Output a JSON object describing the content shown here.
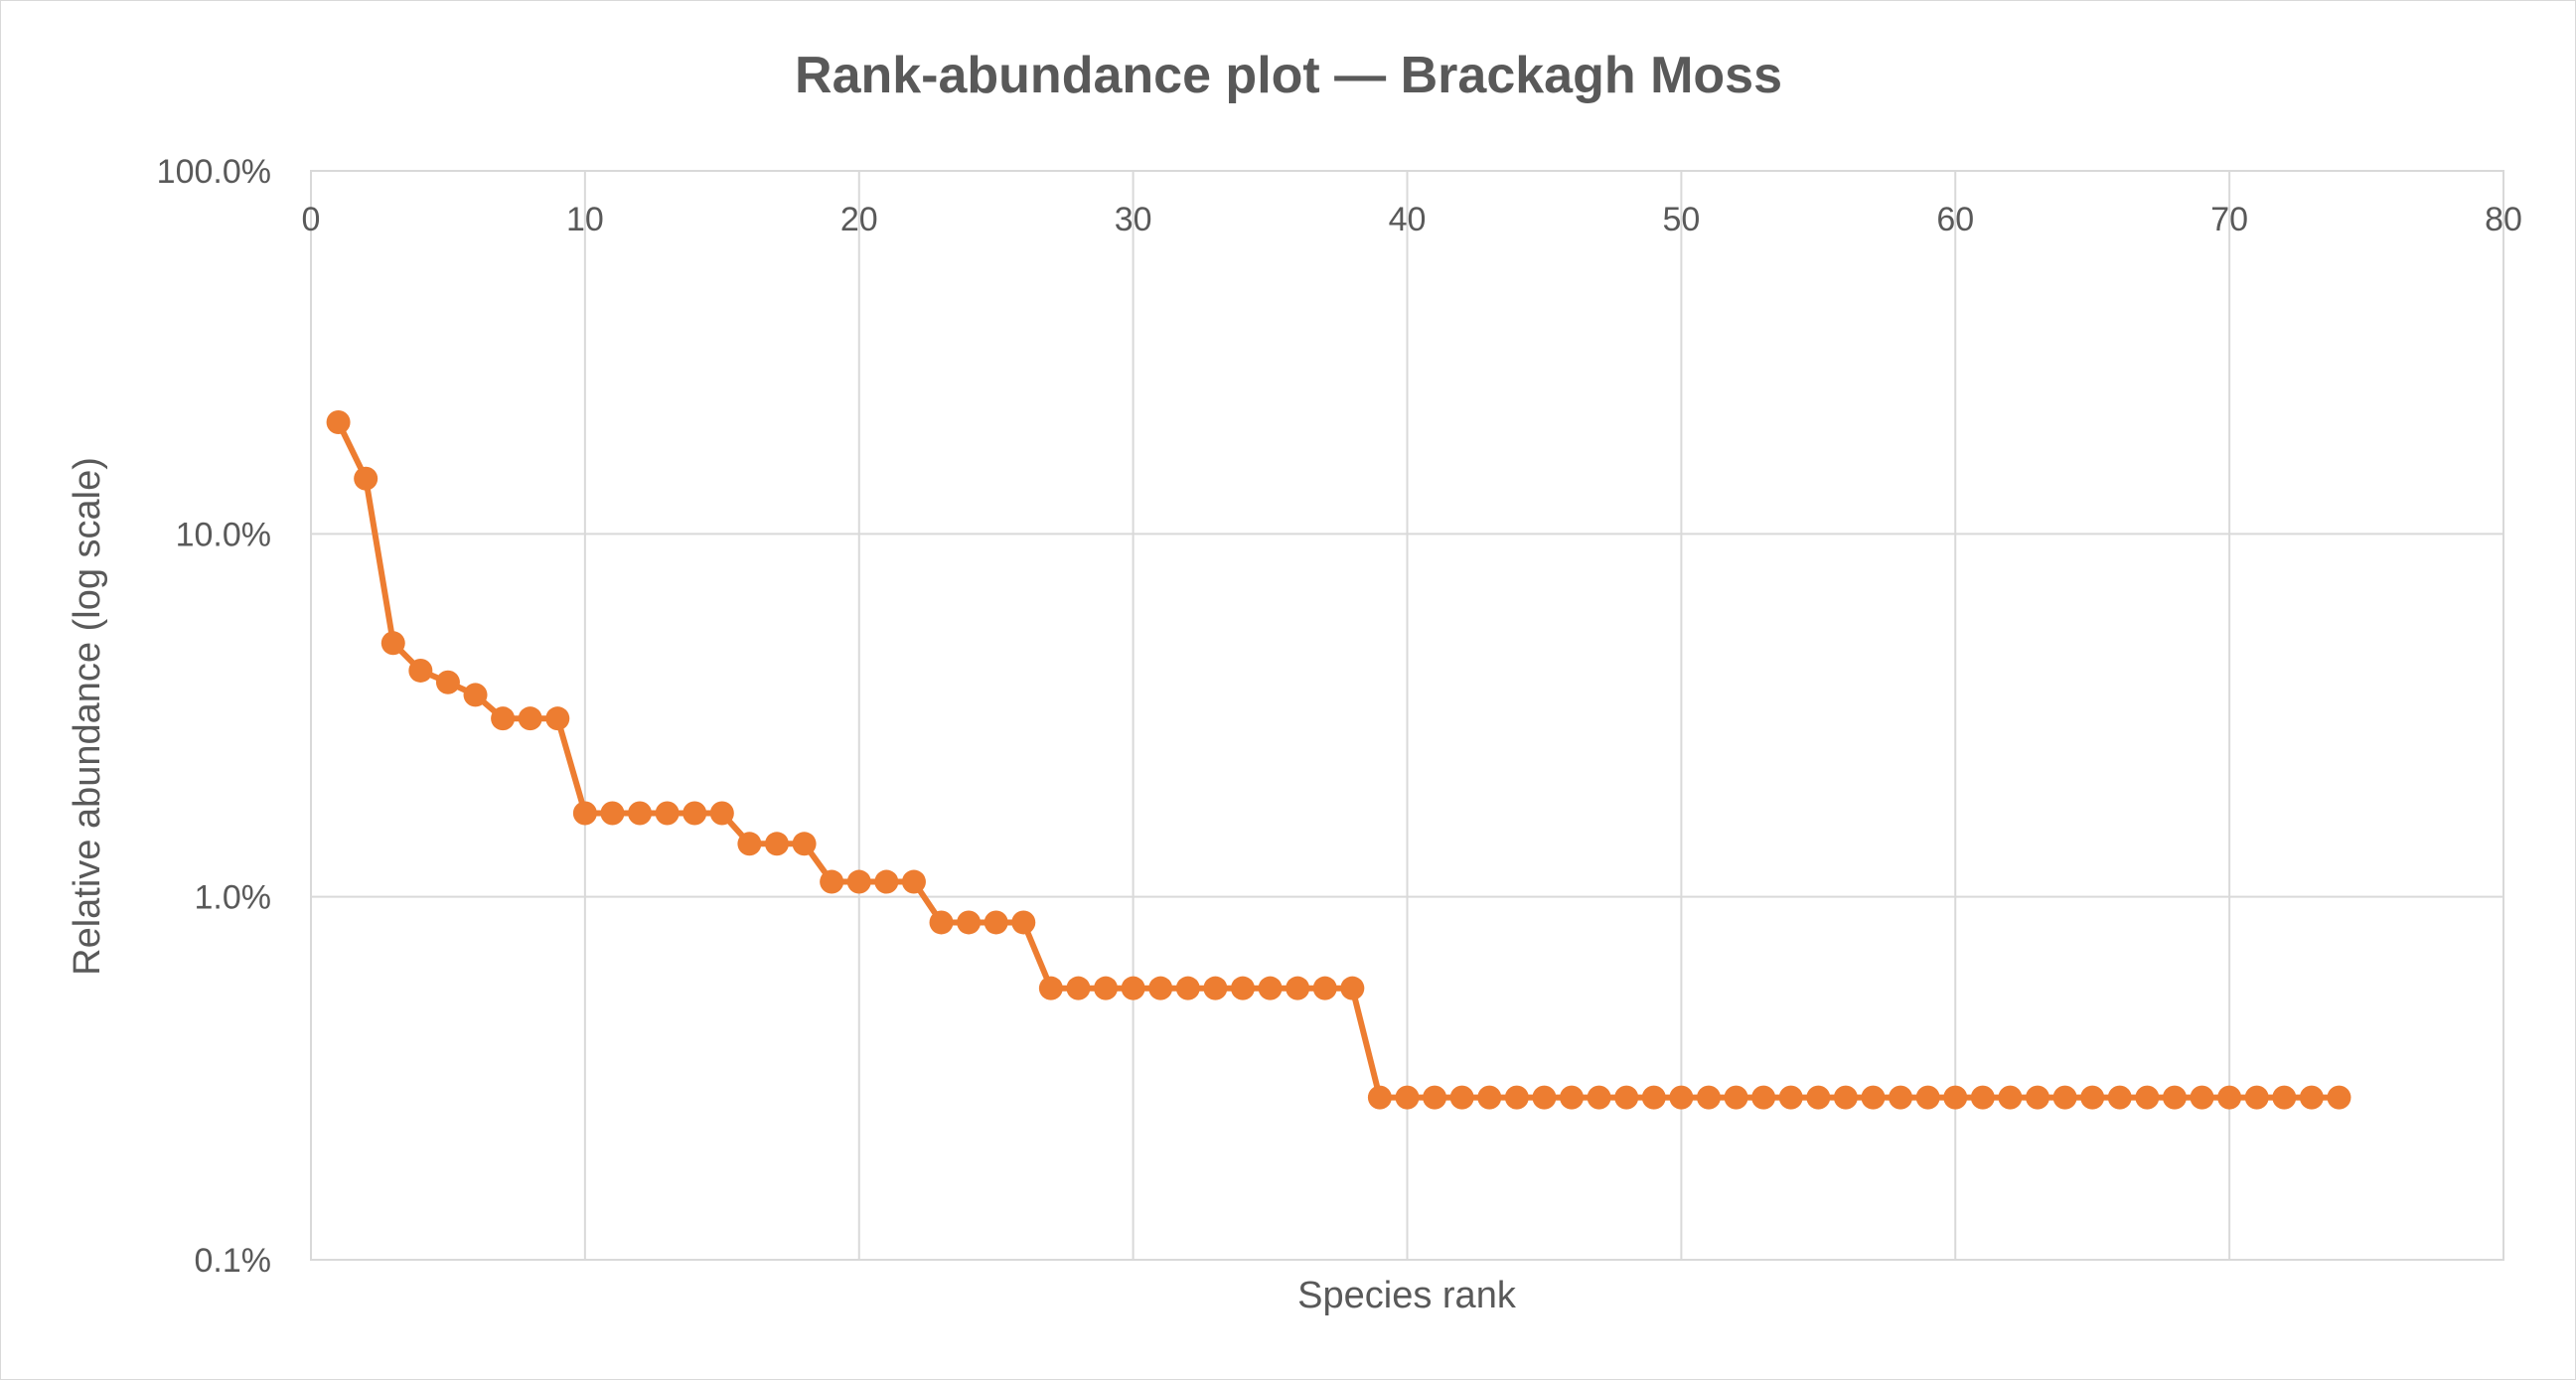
{
  "chart_data": {
    "type": "line",
    "title": "Rank-abundance plot — Brackagh Moss",
    "xlabel": "Species rank",
    "ylabel": "Relative abundance (log scale)",
    "xlim": [
      0,
      80
    ],
    "x_ticks": [
      0,
      10,
      20,
      30,
      40,
      50,
      60,
      70,
      80
    ],
    "x_tick_labels": [
      "0",
      "10",
      "20",
      "30",
      "40",
      "50",
      "60",
      "70",
      "80"
    ],
    "x_axis_position": "top",
    "ylim": [
      0.1,
      100
    ],
    "y_scale": "log",
    "y_unit": "percent",
    "y_ticks": [
      0.1,
      1,
      10,
      100
    ],
    "y_tick_labels": [
      "0.1%",
      "1.0%",
      "10.0%",
      "100.0%"
    ],
    "grid": true,
    "legend": "none",
    "series": [
      {
        "color": "#ED7D31",
        "marker": "circle",
        "x": [
          1,
          2,
          3,
          4,
          5,
          6,
          7,
          8,
          9,
          10,
          11,
          12,
          13,
          14,
          15,
          16,
          17,
          18,
          19,
          20,
          21,
          22,
          23,
          24,
          25,
          26,
          27,
          28,
          29,
          30,
          31,
          32,
          33,
          34,
          35,
          36,
          37,
          38,
          39,
          40,
          41,
          42,
          43,
          44,
          45,
          46,
          47,
          48,
          49,
          50,
          51,
          52,
          53,
          54,
          55,
          56,
          57,
          58,
          59,
          60,
          61,
          62,
          63,
          64,
          65,
          66,
          67,
          68,
          69,
          70,
          71,
          72,
          73,
          74
        ],
        "y": [
          20.3,
          14.2,
          5.0,
          4.2,
          3.9,
          3.6,
          3.1,
          3.1,
          3.1,
          1.7,
          1.7,
          1.7,
          1.7,
          1.7,
          1.7,
          1.4,
          1.4,
          1.4,
          1.1,
          1.1,
          1.1,
          1.1,
          0.85,
          0.85,
          0.85,
          0.85,
          0.56,
          0.56,
          0.56,
          0.56,
          0.56,
          0.56,
          0.56,
          0.56,
          0.56,
          0.56,
          0.56,
          0.56,
          0.28,
          0.28,
          0.28,
          0.28,
          0.28,
          0.28,
          0.28,
          0.28,
          0.28,
          0.28,
          0.28,
          0.28,
          0.28,
          0.28,
          0.28,
          0.28,
          0.28,
          0.28,
          0.28,
          0.28,
          0.28,
          0.28,
          0.28,
          0.28,
          0.28,
          0.28,
          0.28,
          0.28,
          0.28,
          0.28,
          0.28,
          0.28,
          0.28,
          0.28,
          0.28,
          0.28
        ]
      }
    ]
  }
}
